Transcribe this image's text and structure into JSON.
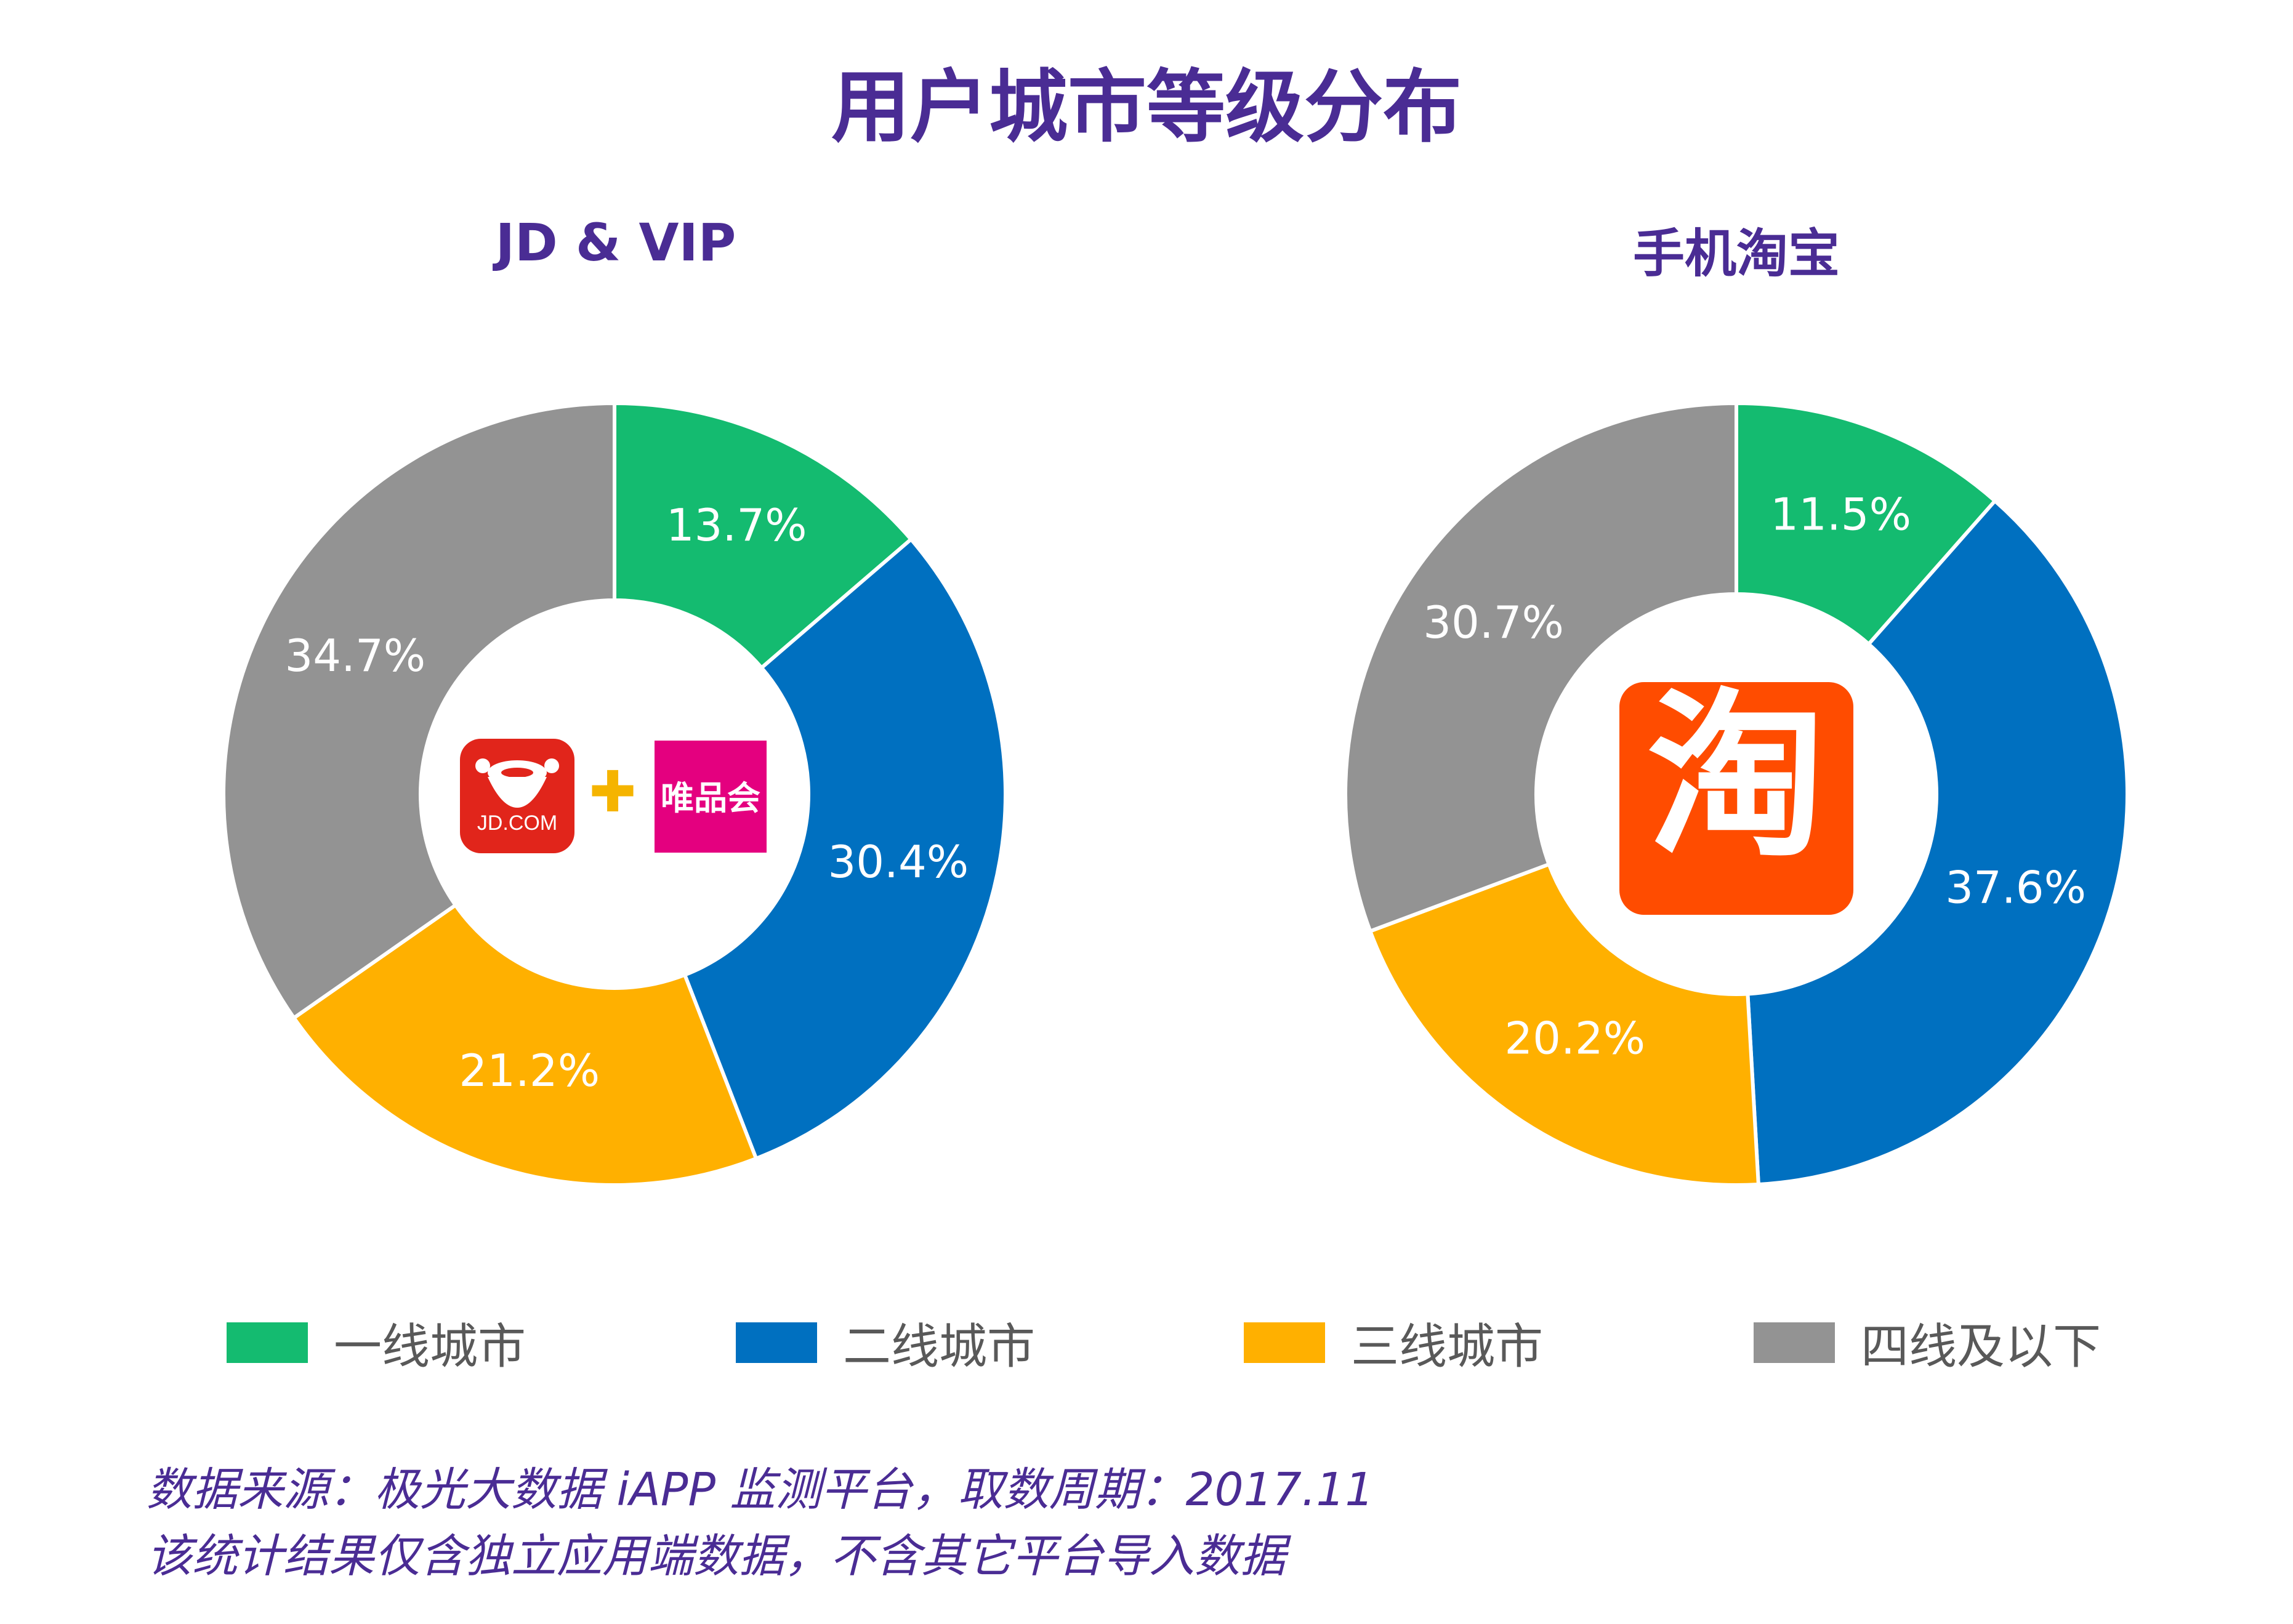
{
  "title": "用户城市等级分布",
  "colors": {
    "tier1": "#14bb70",
    "tier2": "#0070c0",
    "tier3": "#ffb000",
    "tier4": "#939393",
    "title": "#4a2c94"
  },
  "logos": {
    "jd_text": "JD.COM",
    "plus": "✚",
    "vip_text": "唯品会",
    "taobao_text": "淘"
  },
  "chart_data": [
    {
      "type": "pie",
      "title": "JD & VIP",
      "categories": [
        "一线城市",
        "二线城市",
        "三线城市",
        "四线及以下"
      ],
      "values": [
        13.7,
        30.4,
        21.2,
        34.7
      ],
      "labels": [
        "13.7%",
        "30.4%",
        "21.2%",
        "34.7%"
      ]
    },
    {
      "type": "pie",
      "title": "手机淘宝",
      "categories": [
        "一线城市",
        "二线城市",
        "三线城市",
        "四线及以下"
      ],
      "values": [
        11.5,
        37.6,
        20.2,
        30.7
      ],
      "labels": [
        "11.5%",
        "37.6%",
        "20.2%",
        "30.7%"
      ]
    }
  ],
  "legend": [
    "一线城市",
    "二线城市",
    "三线城市",
    "四线及以下"
  ],
  "footnote": {
    "line1": "数据来源：极光大数据 iAPP 监测平台，取数周期：2017.11",
    "line2": "该统计结果仅含独立应用端数据，不含其它平台导入数据"
  }
}
